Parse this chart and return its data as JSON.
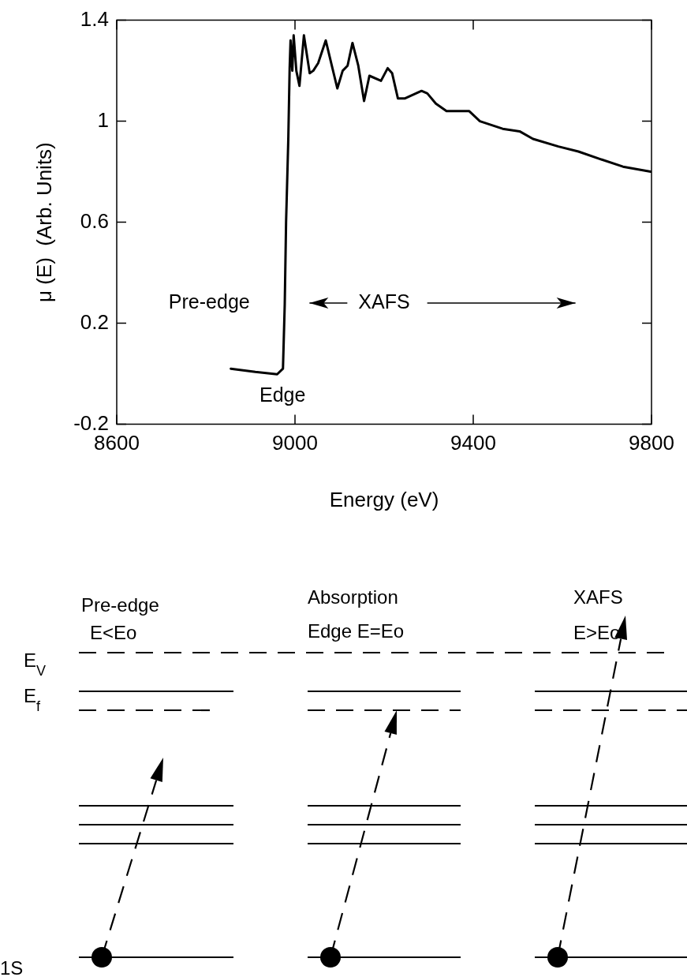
{
  "chart_data": {
    "type": "line",
    "xlabel": "Energy (eV)",
    "ylabel": "μ (E)  (Arb. Units)",
    "x": [
      8856,
      8911,
      8960,
      8973,
      8977,
      8980,
      8985,
      8988,
      8990,
      8994,
      8997,
      9003,
      9010,
      9020,
      9033,
      9041,
      9052,
      9069,
      9084,
      9095,
      9107,
      9118,
      9129,
      9142,
      9155,
      9167,
      9193,
      9208,
      9218,
      9231,
      9246,
      9284,
      9297,
      9316,
      9340,
      9391,
      9415,
      9466,
      9504,
      9534,
      9591,
      9636,
      9685,
      9736,
      9798
    ],
    "series": [
      {
        "color": "#000000",
        "values": [
          0.02,
          0.007,
          -0.002,
          0.02,
          0.275,
          0.6,
          0.93,
          1.21,
          1.32,
          1.2,
          1.34,
          1.2,
          1.14,
          1.34,
          1.19,
          1.2,
          1.23,
          1.32,
          1.21,
          1.13,
          1.2,
          1.22,
          1.31,
          1.22,
          1.08,
          1.18,
          1.16,
          1.21,
          1.19,
          1.09,
          1.09,
          1.12,
          1.11,
          1.07,
          1.04,
          1.04,
          1.0,
          0.97,
          0.96,
          0.93,
          0.9,
          0.88,
          0.85,
          0.82,
          0.8
        ]
      }
    ],
    "xlim": [
      8600,
      9800
    ],
    "xticks": [
      8600,
      9000,
      9400,
      9800
    ],
    "ylim": [
      -0.2,
      1.4
    ],
    "yticks": [
      -0.2,
      0.2,
      0.6,
      1,
      1.4
    ],
    "grid": false,
    "legend": false,
    "marker": "none",
    "line_style": "solid",
    "annotations": [
      "Pre-edge",
      "XAFS",
      "Edge",
      "Pre-edge",
      "E<Eo",
      "Absorption",
      "Edge  E=Eo",
      "XAFS",
      "E>Eo",
      "E$_{V}$",
      "E$_{f}$",
      "1S"
    ]
  }
}
